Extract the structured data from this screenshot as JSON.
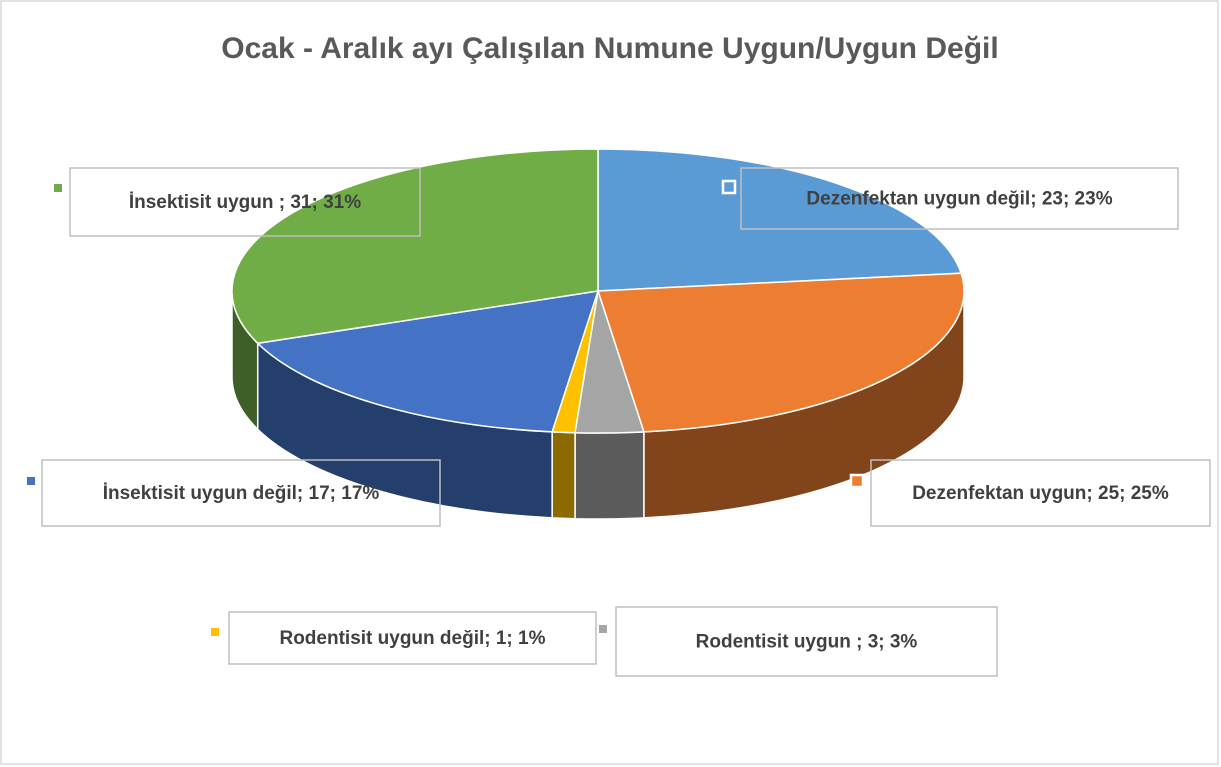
{
  "chart_data": {
    "type": "pie3d",
    "title": "Ocak - Aralık ayı Çalışılan Numune Uygun/Uygun Değil",
    "values": [
      23,
      25,
      3,
      1,
      17,
      31
    ],
    "value_labels": [
      "Dezenfektan uygun değil; 23; 23%",
      "Dezenfektan uygun; 25; 25%",
      "Rodentisit uygun ; 3; 3%",
      "Rodentisit uygun değil; 1; 1%",
      "İnsektisit uygun değil; 17; 17%",
      "İnsektisit uygun ; 31; 31%"
    ],
    "colors": [
      "#5b9bd5",
      "#ed7d31",
      "#a5a5a5",
      "#ffc000",
      "#4472c4",
      "#70ad47"
    ]
  }
}
